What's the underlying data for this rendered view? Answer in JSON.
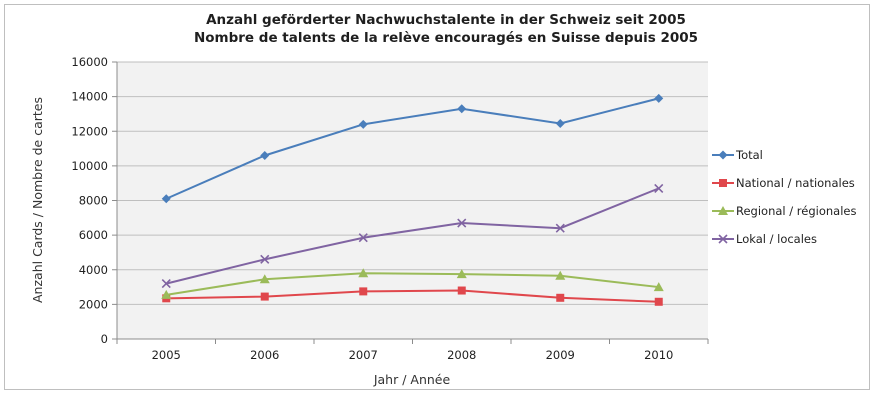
{
  "chart_data": {
    "type": "line",
    "title_line1": "Anzahl geförderter Nachwuchstalente in der Schweiz seit 2005",
    "title_line2": "Nombre de talents de la relève encouragés en Suisse depuis 2005",
    "xlabel": "Jahr / Année",
    "ylabel": "Anzahl Cards / Nombre de cartes",
    "categories": [
      "2005",
      "2006",
      "2007",
      "2008",
      "2009",
      "2010"
    ],
    "ylim": [
      0,
      16000
    ],
    "yticks": [
      0,
      2000,
      4000,
      6000,
      8000,
      10000,
      12000,
      14000,
      16000
    ],
    "grid": "horizontal",
    "legend_position": "right",
    "series": [
      {
        "name": "Total",
        "values": [
          8100,
          10600,
          12400,
          13300,
          12450,
          13900
        ],
        "color": "#4a7ebb",
        "marker": "diamond"
      },
      {
        "name": "National / nationales",
        "values": [
          2350,
          2450,
          2750,
          2800,
          2380,
          2150
        ],
        "color": "#e0474c",
        "marker": "square"
      },
      {
        "name": "Regional / régionales",
        "values": [
          2550,
          3450,
          3800,
          3750,
          3650,
          3000
        ],
        "color": "#9bbb59",
        "marker": "triangle"
      },
      {
        "name": "Lokal / locales",
        "values": [
          3200,
          4600,
          5850,
          6700,
          6400,
          8700
        ],
        "color": "#8064a2",
        "marker": "x"
      }
    ]
  }
}
